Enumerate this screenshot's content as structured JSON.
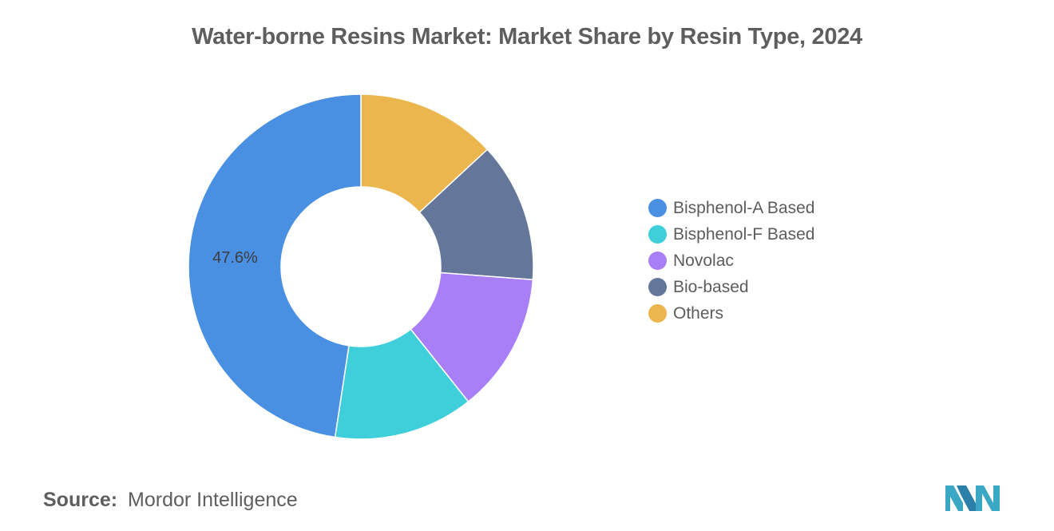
{
  "title": "Water-borne Resins Market: Market Share by Resin Type, 2024",
  "chart_data": {
    "type": "pie",
    "donut": true,
    "categories": [
      "Bisphenol-A Based",
      "Bisphenol-F Based",
      "Novolac",
      "Bio-based",
      "Others"
    ],
    "values": [
      47.6,
      13.1,
      13.1,
      13.1,
      13.1
    ],
    "colors": [
      "#4a90e2",
      "#3ecfdb",
      "#a97ff8",
      "#64779b",
      "#ebb64d"
    ],
    "data_labels": [
      "47.6%",
      "",
      "",
      "",
      ""
    ],
    "legend_position": "right"
  },
  "source": {
    "label": "Source:",
    "text": "Mordor Intelligence"
  },
  "logo": {
    "icon": "mordor-intelligence-logo",
    "colors": [
      "#3aa7c4",
      "#2c7fa8"
    ]
  }
}
